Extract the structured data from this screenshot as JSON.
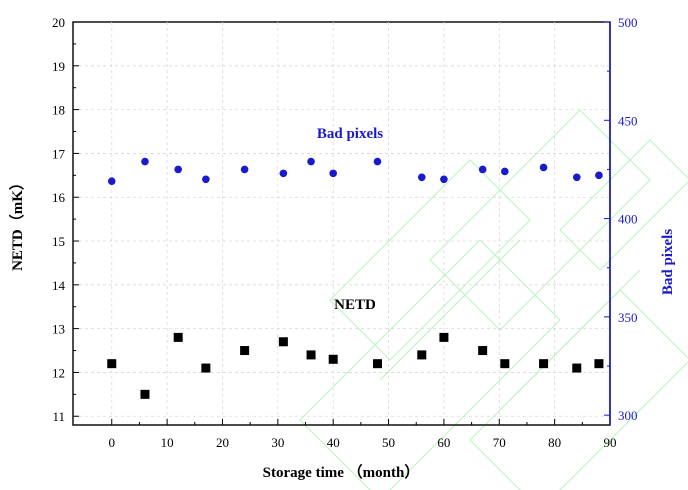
{
  "chart_data": {
    "type": "scatter",
    "title": "",
    "xlabel": "Storage time （month）",
    "ylabel_left": "NETD（mK）",
    "ylabel_right": "Bad pixels",
    "xlim": [
      -7,
      90
    ],
    "ylim_left": [
      10.8,
      20
    ],
    "ylim_right": [
      295,
      500
    ],
    "x_ticks": [
      0,
      10,
      20,
      30,
      40,
      50,
      60,
      70,
      80,
      90
    ],
    "y_ticks_left": [
      11,
      12,
      13,
      14,
      15,
      16,
      17,
      18,
      19,
      20
    ],
    "y_ticks_right": [
      300,
      350,
      400,
      450,
      500
    ],
    "grid": true,
    "colors": {
      "netd": "#000000",
      "bad_pixels": "#1a1acc",
      "right_axis": "#1a1acc"
    },
    "series": [
      {
        "name": "NETD",
        "axis": "left",
        "marker": "square",
        "x": [
          0,
          6,
          12,
          17,
          24,
          31,
          36,
          40,
          48,
          56,
          60,
          67,
          71,
          78,
          84,
          88
        ],
        "y": [
          12.2,
          11.5,
          12.8,
          12.1,
          12.5,
          12.7,
          12.4,
          12.3,
          12.2,
          12.4,
          12.8,
          12.5,
          12.2,
          12.2,
          12.1,
          12.2
        ]
      },
      {
        "name": "Bad pixels",
        "axis": "right",
        "marker": "circle",
        "x": [
          0,
          6,
          12,
          17,
          24,
          31,
          36,
          40,
          48,
          56,
          60,
          67,
          71,
          78,
          84,
          88
        ],
        "y": [
          419,
          429,
          425,
          420,
          425,
          423,
          429,
          423,
          429,
          421,
          420,
          425,
          424,
          426,
          421,
          422
        ]
      }
    ]
  }
}
